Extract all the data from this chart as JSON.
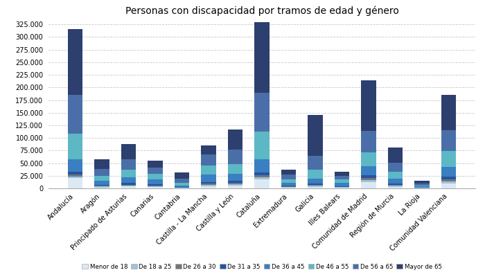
{
  "title": "Personas con discapacidad por tramos de edad y género",
  "categories": [
    "Andalucía",
    "Aragón",
    "Principado de Asturias",
    "Canarias",
    "Cantabria",
    "Castilla - La Mancha",
    "Castilla y León",
    "Cataluña",
    "Extremadura",
    "Galicia",
    "Illes Balears",
    "Comunidad de Madrid",
    "Región de Murcia",
    "La Rioja",
    "Comunidad Valenciana"
  ],
  "age_groups": [
    "Menor de 18",
    "De 18 a 25",
    "De 26 a 30",
    "De 31 a 35",
    "De 36 a 45",
    "De 46 a 55",
    "De 56 a 65",
    "Mayor de 65"
  ],
  "colors": [
    "#dce9f5",
    "#9dc3df",
    "#757575",
    "#2255a4",
    "#3a7fc1",
    "#5cb8c4",
    "#4a6fa8",
    "#2d3f6e"
  ],
  "data": {
    "Menor de 18": [
      20000,
      2000,
      3500,
      2500,
      800,
      4000,
      5000,
      18000,
      1500,
      3000,
      1500,
      12000,
      3000,
      600,
      9000
    ],
    "De 18 a 25": [
      4000,
      1500,
      2000,
      2000,
      500,
      2500,
      3000,
      4000,
      1000,
      2000,
      1000,
      5000,
      2000,
      300,
      5000
    ],
    "De 26 a 30": [
      4000,
      1500,
      2000,
      1500,
      500,
      2500,
      2500,
      4000,
      1000,
      1500,
      800,
      4000,
      1500,
      200,
      4000
    ],
    "De 31 a 35": [
      5000,
      2000,
      3000,
      2500,
      800,
      4000,
      4000,
      6000,
      1500,
      2500,
      1500,
      5000,
      2500,
      400,
      6000
    ],
    "De 36 a 45": [
      25000,
      8000,
      12000,
      10000,
      3500,
      14000,
      14000,
      25000,
      6000,
      10000,
      6000,
      18000,
      10000,
      2000,
      18000
    ],
    "De 46 a 55": [
      50000,
      10000,
      15000,
      11000,
      5000,
      18000,
      20000,
      55000,
      7000,
      18000,
      7000,
      28000,
      14000,
      2500,
      32000
    ],
    "De 56 a 65": [
      78000,
      14000,
      20000,
      12000,
      7500,
      22000,
      28000,
      78000,
      9000,
      28000,
      7000,
      42000,
      18000,
      3500,
      42000
    ],
    "Mayor de 65": [
      130000,
      18000,
      30000,
      14000,
      13000,
      18000,
      40000,
      140000,
      10000,
      80000,
      8000,
      100000,
      30000,
      5000,
      70000
    ]
  },
  "ylim": [
    0,
    335000
  ],
  "yticks": [
    0,
    25000,
    50000,
    75000,
    100000,
    125000,
    150000,
    175000,
    200000,
    225000,
    250000,
    275000,
    300000,
    325000
  ],
  "background_color": "#ffffff",
  "grid_color": "#c8c8c8"
}
